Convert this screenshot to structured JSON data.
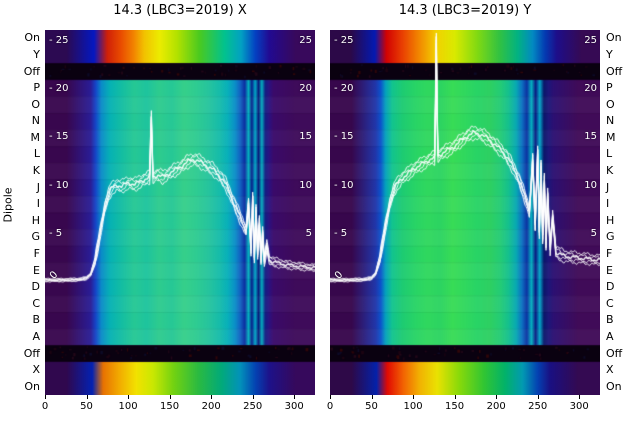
{
  "titles": {
    "left": "14.3 (LBC3=2019) X",
    "right": "14.3 (LBC3=2019) Y"
  },
  "y_axis_title": "Dipole",
  "row_labels": [
    "On",
    "Y",
    "Off",
    "P",
    "O",
    "N",
    "M",
    "L",
    "K",
    "J",
    "I",
    "H",
    "G",
    "F",
    "E",
    "D",
    "C",
    "B",
    "A",
    "Off",
    "X",
    "On"
  ],
  "x_axis": {
    "ticks": [
      0,
      50,
      100,
      150,
      200,
      250,
      300
    ]
  },
  "inner_axis": {
    "values": [
      25,
      20,
      15,
      10,
      5
    ],
    "left_labels": [
      "- 25",
      "- 20",
      "- 15",
      "- 10",
      "- 5"
    ],
    "right_labels": [
      "25",
      "20",
      "15",
      "10",
      "5"
    ],
    "zero_label": "0"
  },
  "chart_data": [
    {
      "type": "heatmap",
      "overlay": "line",
      "title": "14.3 (LBC3=2019) X",
      "x_range": [
        0,
        325
      ],
      "x_ticks": [
        0,
        50,
        100,
        150,
        200,
        250,
        300
      ],
      "value_ticks": [
        0,
        5,
        10,
        15,
        20,
        25
      ],
      "rows": [
        "On",
        "Y",
        "Off",
        "P",
        "O",
        "N",
        "M",
        "L",
        "K",
        "J",
        "I",
        "H",
        "G",
        "F",
        "E",
        "D",
        "C",
        "B",
        "A",
        "Off",
        "X",
        "On"
      ],
      "regions": {
        "off_color": "#0a0110",
        "top_band": [
          [
            0,
            52,
            "#2c0a52"
          ],
          [
            52,
            66,
            "#0418c2"
          ],
          [
            66,
            84,
            "#d02008"
          ],
          [
            84,
            100,
            "#ea4e00"
          ],
          [
            100,
            113,
            "#f28200"
          ],
          [
            113,
            126,
            "#f2c200"
          ],
          [
            126,
            150,
            "#ecec00"
          ],
          [
            150,
            168,
            "#b2e200"
          ],
          [
            168,
            204,
            "#4aca20"
          ],
          [
            204,
            228,
            "#02c28e"
          ],
          [
            228,
            244,
            "#02a2c2"
          ],
          [
            244,
            262,
            "#0442c2"
          ],
          [
            262,
            278,
            "#220a92"
          ],
          [
            278,
            325,
            "#38095c"
          ]
        ],
        "main": [
          [
            0,
            52,
            "#38074e"
          ],
          [
            52,
            58,
            "#2a1d96"
          ],
          [
            58,
            64,
            "#1545c8"
          ],
          [
            64,
            72,
            "#0a8cc8"
          ],
          [
            72,
            85,
            "#06b2b4"
          ],
          [
            85,
            100,
            "#14bea2"
          ],
          [
            100,
            115,
            "#26c894"
          ],
          [
            115,
            130,
            "#1ec49e"
          ],
          [
            130,
            145,
            "#2ecc8e"
          ],
          [
            145,
            160,
            "#26c896"
          ],
          [
            160,
            175,
            "#36d08a"
          ],
          [
            175,
            190,
            "#2ecc92"
          ],
          [
            190,
            205,
            "#26c49e"
          ],
          [
            205,
            215,
            "#16bcaa"
          ],
          [
            215,
            225,
            "#08b0ba"
          ],
          [
            225,
            232,
            "#0a90c8"
          ],
          [
            232,
            238,
            "#1262c2"
          ],
          [
            238,
            243,
            "#0c2ea0"
          ],
          [
            243,
            247,
            "#04b2c0"
          ],
          [
            247,
            251,
            "#081e8a"
          ],
          [
            251,
            255,
            "#02a8c8"
          ],
          [
            255,
            259,
            "#0a1a7a"
          ],
          [
            259,
            263,
            "#04aec0"
          ],
          [
            263,
            267,
            "#121e82"
          ],
          [
            267,
            272,
            "#2a1282"
          ],
          [
            272,
            278,
            "#3a0a6a"
          ],
          [
            278,
            325,
            "#3e0b5a"
          ]
        ],
        "bottom_band": [
          [
            0,
            52,
            "#30084e"
          ],
          [
            52,
            62,
            "#0422b2"
          ],
          [
            62,
            78,
            "#e87202"
          ],
          [
            78,
            100,
            "#f2aa00"
          ],
          [
            100,
            120,
            "#f2e200"
          ],
          [
            120,
            140,
            "#cae802"
          ],
          [
            140,
            170,
            "#72d212"
          ],
          [
            170,
            200,
            "#2aba42"
          ],
          [
            200,
            225,
            "#02aa7a"
          ],
          [
            225,
            245,
            "#0292ba"
          ],
          [
            245,
            262,
            "#0442b2"
          ],
          [
            262,
            278,
            "#1e128a"
          ],
          [
            278,
            325,
            "#36095c"
          ]
        ]
      },
      "line": {
        "color": "#ffffff",
        "offsets": [
          0,
          0.3,
          -0.3,
          0.6,
          -0.6
        ],
        "x": [
          0,
          20,
          40,
          50,
          55,
          60,
          64,
          68,
          72,
          76,
          80,
          86,
          92,
          100,
          108,
          116,
          122,
          126,
          127,
          128,
          129,
          130,
          136,
          142,
          150,
          158,
          166,
          172,
          178,
          184,
          190,
          196,
          202,
          208,
          214,
          218,
          222,
          226,
          230,
          234,
          238,
          242,
          245,
          248,
          250,
          252,
          254,
          256,
          258,
          260,
          262,
          264,
          267,
          270,
          274,
          280,
          290,
          300,
          310,
          320,
          325
        ],
        "v": [
          0.3,
          0.3,
          0.35,
          0.5,
          0.9,
          2.2,
          4.0,
          6.0,
          7.8,
          9.0,
          9.8,
          10.2,
          10.0,
          10.4,
          10.2,
          10.6,
          10.8,
          11.0,
          14.5,
          17.2,
          14.0,
          11.0,
          11.2,
          11.0,
          11.4,
          11.8,
          12.2,
          12.6,
          12.8,
          12.7,
          12.4,
          12.1,
          11.8,
          11.3,
          10.7,
          10.2,
          9.4,
          8.6,
          7.8,
          7.0,
          6.2,
          5.4,
          8.2,
          3.4,
          8.8,
          2.6,
          7.6,
          3.0,
          6.4,
          2.4,
          5.2,
          2.2,
          4.0,
          2.4,
          2.2,
          2.1,
          1.9,
          1.8,
          1.7,
          1.6,
          1.6
        ]
      }
    },
    {
      "type": "heatmap",
      "overlay": "line",
      "title": "14.3 (LBC3=2019) Y",
      "x_range": [
        0,
        325
      ],
      "x_ticks": [
        0,
        50,
        100,
        150,
        200,
        250,
        300
      ],
      "value_ticks": [
        0,
        5,
        10,
        15,
        20,
        25
      ],
      "rows": [
        "On",
        "Y",
        "Off",
        "P",
        "O",
        "N",
        "M",
        "L",
        "K",
        "J",
        "I",
        "H",
        "G",
        "F",
        "E",
        "D",
        "C",
        "B",
        "A",
        "Off",
        "X",
        "On"
      ],
      "regions": {
        "off_color": "#0a0110",
        "top_band": [
          [
            0,
            50,
            "#2c0948"
          ],
          [
            50,
            58,
            "#041ab2"
          ],
          [
            58,
            78,
            "#d20202"
          ],
          [
            78,
            98,
            "#ea4202"
          ],
          [
            98,
            118,
            "#f28a00"
          ],
          [
            118,
            138,
            "#f2d200"
          ],
          [
            138,
            162,
            "#daea00"
          ],
          [
            162,
            192,
            "#82da12"
          ],
          [
            192,
            216,
            "#32c242"
          ],
          [
            216,
            236,
            "#02b282"
          ],
          [
            236,
            252,
            "#028ac2"
          ],
          [
            252,
            266,
            "#043ab2"
          ],
          [
            266,
            280,
            "#1e0e8a"
          ],
          [
            280,
            325,
            "#360a54"
          ]
        ],
        "main": [
          [
            0,
            52,
            "#37074c"
          ],
          [
            52,
            58,
            "#2136aa"
          ],
          [
            58,
            64,
            "#0c52cc"
          ],
          [
            64,
            70,
            "#04a2bc"
          ],
          [
            70,
            80,
            "#12c48e"
          ],
          [
            80,
            95,
            "#1ecc72"
          ],
          [
            95,
            110,
            "#28d466"
          ],
          [
            110,
            125,
            "#30d85e"
          ],
          [
            125,
            140,
            "#2cd462"
          ],
          [
            140,
            155,
            "#38dc56"
          ],
          [
            155,
            170,
            "#30d85e"
          ],
          [
            170,
            185,
            "#28d466"
          ],
          [
            185,
            200,
            "#2ed062"
          ],
          [
            200,
            210,
            "#24cc76"
          ],
          [
            210,
            220,
            "#14c08e"
          ],
          [
            220,
            228,
            "#08aab2"
          ],
          [
            228,
            234,
            "#0c72c2"
          ],
          [
            234,
            240,
            "#0c32a2"
          ],
          [
            240,
            245,
            "#04b0c0"
          ],
          [
            245,
            250,
            "#0a1a82"
          ],
          [
            250,
            255,
            "#02a8c8"
          ],
          [
            255,
            260,
            "#0a166a"
          ],
          [
            260,
            266,
            "#1c167a"
          ],
          [
            266,
            272,
            "#2c1072"
          ],
          [
            272,
            325,
            "#400b58"
          ]
        ],
        "bottom_band": [
          [
            0,
            52,
            "#2e0948"
          ],
          [
            52,
            60,
            "#0422aa"
          ],
          [
            60,
            78,
            "#e20a02"
          ],
          [
            78,
            98,
            "#f26202"
          ],
          [
            98,
            118,
            "#f2b202"
          ],
          [
            118,
            140,
            "#eae202"
          ],
          [
            140,
            170,
            "#8ada0a"
          ],
          [
            170,
            200,
            "#32c632"
          ],
          [
            200,
            222,
            "#02b26a"
          ],
          [
            222,
            242,
            "#029ab2"
          ],
          [
            242,
            258,
            "#0442b2"
          ],
          [
            258,
            272,
            "#1a1082"
          ],
          [
            272,
            325,
            "#340a52"
          ]
        ]
      },
      "line": {
        "color": "#ffffff",
        "offsets": [
          0,
          0.3,
          -0.3,
          0.6,
          -0.6
        ],
        "x": [
          0,
          20,
          40,
          50,
          55,
          60,
          64,
          68,
          72,
          76,
          80,
          86,
          92,
          100,
          108,
          116,
          122,
          126,
          127,
          128,
          129,
          130,
          136,
          142,
          150,
          158,
          166,
          174,
          182,
          190,
          198,
          206,
          212,
          218,
          224,
          228,
          232,
          236,
          240,
          244,
          247,
          250,
          252,
          254,
          256,
          258,
          260,
          262,
          265,
          268,
          272,
          276,
          282,
          290,
          300,
          310,
          320,
          325
        ],
        "v": [
          0.3,
          0.3,
          0.35,
          0.5,
          1.0,
          2.5,
          4.5,
          6.5,
          8.2,
          9.4,
          10.2,
          10.8,
          11.2,
          11.8,
          12.2,
          12.6,
          12.9,
          13.0,
          19.0,
          25.5,
          17.5,
          13.2,
          13.5,
          13.8,
          14.2,
          14.8,
          15.3,
          15.6,
          15.4,
          15.0,
          14.4,
          13.8,
          13.2,
          12.4,
          11.4,
          10.6,
          9.6,
          8.6,
          7.4,
          12.8,
          6.0,
          13.6,
          5.2,
          12.2,
          4.6,
          10.8,
          4.0,
          9.2,
          3.6,
          7.0,
          3.2,
          3.0,
          2.8,
          2.7,
          2.6,
          2.5,
          2.4,
          2.4
        ]
      }
    }
  ]
}
